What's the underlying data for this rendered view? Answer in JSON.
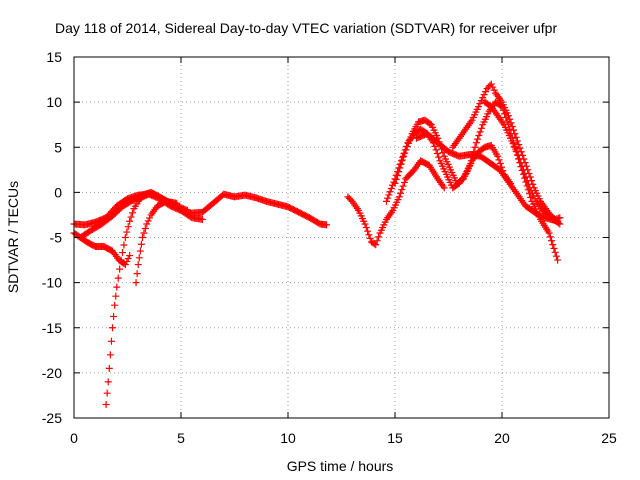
{
  "chart_data": {
    "type": "scatter",
    "title": "Day 118 of 2014, Sidereal Day-to-day VTEC variation (SDTVAR) for receiver ufpr",
    "xlabel": "GPS time / hours",
    "ylabel": "SDTVAR / TECUs",
    "xlim": [
      0,
      25
    ],
    "ylim": [
      -25,
      15
    ],
    "xticks": [
      0,
      5,
      10,
      15,
      20,
      25
    ],
    "xtick_labels": [
      "0",
      "5",
      "10",
      "15",
      "20",
      "25"
    ],
    "yticks": [
      -25,
      -20,
      -15,
      -10,
      -5,
      0,
      5,
      10,
      15
    ],
    "ytick_labels": [
      "-25",
      "-20",
      "-15",
      "-10",
      "-5",
      "0",
      "5",
      "10",
      "15"
    ],
    "grid": true,
    "marker": "plus",
    "color": "#ff0000",
    "series": [
      {
        "x": [
          0,
          0.5,
          1,
          1.5,
          2,
          2.5,
          3,
          3.5,
          4,
          4.5,
          5,
          5.5,
          6,
          6.5,
          7,
          7.5,
          8,
          8.5,
          9,
          9.5,
          10,
          10.5,
          11,
          11.5,
          11.8
        ],
        "y": [
          -3.5,
          -3.6,
          -3.3,
          -2.8,
          -1.5,
          -0.7,
          -0.3,
          -0.2,
          -0.7,
          -1.5,
          -2.0,
          -2.3,
          -2.2,
          -1.2,
          -0.2,
          -0.5,
          -0.3,
          -0.6,
          -1.0,
          -1.3,
          -1.6,
          -2.2,
          -2.8,
          -3.5,
          -3.6
        ]
      },
      {
        "x": [
          0,
          0.3,
          0.6,
          1.0,
          1.4,
          1.8,
          2.1,
          2.4,
          2.6
        ],
        "y": [
          -4.5,
          -5.0,
          -5.5,
          -6.0,
          -6.0,
          -6.5,
          -7.5,
          -8.0,
          -7.0
        ]
      },
      {
        "x": [
          0.3,
          0.8,
          1.3,
          1.8,
          2.3,
          2.8,
          3.2,
          3.6,
          4.0,
          4.5,
          5.0,
          5.5,
          6.0
        ],
        "y": [
          -5.0,
          -4.2,
          -3.5,
          -2.6,
          -1.5,
          -0.8,
          -0.3,
          0.0,
          -0.5,
          -1.2,
          -2.0,
          -2.8,
          -3.0
        ]
      },
      {
        "x": [
          1.5,
          1.6,
          1.7,
          1.8,
          1.9,
          2.0,
          2.2,
          2.4,
          2.6,
          2.8,
          3.0,
          3.2,
          3.5,
          3.8,
          4.2,
          4.8,
          5.3
        ],
        "y": [
          -23.5,
          -21,
          -18,
          -15,
          -12.5,
          -10.5,
          -7.5,
          -5.0,
          -3.2,
          -1.8,
          -1.0,
          -0.5,
          -0.2,
          -0.3,
          -0.8,
          -1.5,
          -2.0
        ]
      },
      {
        "x": [
          2.9,
          3.0,
          3.1,
          3.2,
          3.4,
          3.6,
          3.9,
          4.3,
          4.8
        ],
        "y": [
          -10.0,
          -8.0,
          -6.5,
          -5.0,
          -3.5,
          -2.5,
          -1.5,
          -1.0,
          -1.2
        ]
      },
      {
        "x": [
          12.8,
          13.0,
          13.3,
          13.6,
          13.9,
          14.1,
          14.3,
          14.6,
          14.9,
          15.2,
          15.5,
          15.9,
          16.2,
          16.6,
          17.0,
          17.3
        ],
        "y": [
          -0.5,
          -1.0,
          -2.0,
          -3.5,
          -5.5,
          -5.8,
          -4.5,
          -3.0,
          -2.0,
          -0.5,
          1.5,
          2.5,
          3.5,
          3.0,
          1.5,
          0.5
        ]
      },
      {
        "x": [
          14.6,
          15.0,
          15.3,
          15.6,
          15.9,
          16.2,
          16.5,
          16.8,
          17.1,
          17.4,
          17.7,
          18.0,
          18.3,
          18.6,
          18.9,
          19.2,
          19.5,
          19.8,
          20.1,
          20.4
        ],
        "y": [
          -1.0,
          1.5,
          3.5,
          5.5,
          6.5,
          7.0,
          6.5,
          5.5,
          3.5,
          2.0,
          0.5,
          1.0,
          2.0,
          3.5,
          4.5,
          5.0,
          5.2,
          4.0,
          2.0,
          1.0
        ]
      },
      {
        "x": [
          15.0,
          15.4,
          15.8,
          16.1,
          16.4,
          16.7,
          17.0,
          17.3,
          17.6,
          17.9,
          18.2,
          18.5,
          18.8,
          19.1,
          19.4,
          19.7,
          20.0,
          20.3,
          20.6,
          21.0,
          21.4,
          21.8,
          22.2,
          22.6
        ],
        "y": [
          1.0,
          4.0,
          6.5,
          7.8,
          8.0,
          7.5,
          6.0,
          4.0,
          2.5,
          1.0,
          1.5,
          3.0,
          5.5,
          7.5,
          9.0,
          10.0,
          9.5,
          7.5,
          5.0,
          2.0,
          -1.0,
          -3.0,
          -4.5,
          -7.5
        ]
      },
      {
        "x": [
          16.0,
          16.5,
          17.0,
          17.5,
          18.0,
          18.5,
          19.0,
          19.3,
          19.6,
          19.9,
          20.2,
          20.5,
          20.8,
          21.1,
          21.4,
          21.7,
          22.0,
          22.3,
          22.6
        ],
        "y": [
          6.0,
          6.5,
          5.5,
          4.5,
          4.0,
          4.2,
          4.0,
          3.5,
          3.0,
          2.5,
          1.5,
          0.5,
          -0.5,
          -1.5,
          -2.0,
          -2.5,
          -2.8,
          -3.0,
          -3.2
        ]
      },
      {
        "x": [
          17.7,
          18.0,
          18.3,
          18.6,
          18.9,
          19.1,
          19.3,
          19.5,
          19.7,
          20.0,
          20.3,
          20.6,
          20.9,
          21.2,
          21.5,
          21.8,
          22.1,
          22.4,
          22.7
        ],
        "y": [
          5.0,
          6.0,
          7.0,
          8.0,
          9.5,
          10.5,
          11.5,
          12.0,
          11.0,
          10.0,
          8.5,
          6.5,
          4.5,
          2.5,
          0.5,
          -1.0,
          -2.0,
          -3.0,
          -3.5
        ]
      },
      {
        "x": [
          19.2,
          19.5,
          19.8,
          20.1,
          20.4,
          20.7,
          21.0,
          21.3,
          21.6,
          21.9,
          22.2,
          22.5,
          22.7
        ],
        "y": [
          10.0,
          9.5,
          8.5,
          7.5,
          6.0,
          4.5,
          2.5,
          0.5,
          -1.0,
          -2.0,
          -2.5,
          -3.0,
          -2.8
        ]
      }
    ]
  }
}
